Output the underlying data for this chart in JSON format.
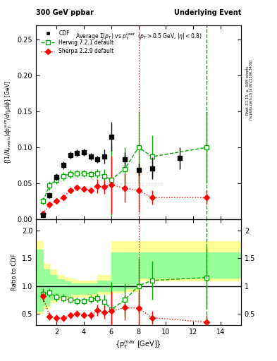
{
  "title_left": "300 GeV ppbar",
  "title_right": "Underlying Event",
  "plot_title": "Average $\\Sigma(p_T)$ vs $p_T^{lead}$  ($p_T > 0.5$ GeV, $|\\eta| < 0.8$)",
  "ylabel_main": "$(1/N_{events}) dp_T^{sum}/d\\eta_t d\\phi$ [GeV]",
  "ylabel_ratio": "Ratio to CDF",
  "xlabel": "$\\{p_T^{max}$ [GeV]$\\}$",
  "right_label_top": "Rivet 3.1.10, $\\geq$ 3.6M events",
  "right_label_bottom": "mcplots.cern.ch [arXiv:1306.3436]",
  "watermark": "CDF 2015_I1388868",
  "cdf_x": [
    1.0,
    1.5,
    2.0,
    2.5,
    3.0,
    3.5,
    4.0,
    4.5,
    5.0,
    5.5,
    6.0,
    7.0,
    8.0,
    9.0,
    11.0
  ],
  "cdf_y": [
    0.006,
    0.033,
    0.059,
    0.075,
    0.089,
    0.092,
    0.093,
    0.087,
    0.083,
    0.087,
    0.115,
    0.083,
    0.069,
    0.071,
    0.085
  ],
  "cdf_yerr": [
    0.002,
    0.004,
    0.005,
    0.005,
    0.005,
    0.005,
    0.005,
    0.005,
    0.005,
    0.01,
    0.02,
    0.01,
    0.008,
    0.015,
    0.015
  ],
  "herwig_x": [
    1.0,
    1.5,
    2.0,
    2.5,
    3.0,
    3.5,
    4.0,
    4.5,
    5.0,
    5.5,
    6.0,
    7.0,
    8.0,
    9.0,
    13.0
  ],
  "herwig_y": [
    0.025,
    0.047,
    0.055,
    0.06,
    0.063,
    0.064,
    0.064,
    0.063,
    0.064,
    0.06,
    0.055,
    0.07,
    0.1,
    0.087,
    0.1
  ],
  "herwig_yerr": [
    0.005,
    0.006,
    0.006,
    0.006,
    0.006,
    0.005,
    0.005,
    0.005,
    0.006,
    0.01,
    0.05,
    0.03,
    0.05,
    0.03,
    0.05
  ],
  "sherpa_x": [
    1.0,
    1.5,
    2.0,
    2.5,
    3.0,
    3.5,
    4.0,
    4.5,
    5.0,
    5.5,
    6.0,
    7.0,
    8.0,
    9.0,
    13.0
  ],
  "sherpa_y": [
    0.008,
    0.02,
    0.025,
    0.03,
    0.04,
    0.044,
    0.042,
    0.04,
    0.046,
    0.045,
    0.048,
    0.043,
    0.04,
    0.03,
    0.03
  ],
  "sherpa_yerr": [
    0.003,
    0.004,
    0.004,
    0.004,
    0.004,
    0.004,
    0.004,
    0.004,
    0.01,
    0.01,
    0.04,
    0.02,
    0.03,
    0.01,
    0.01
  ],
  "herwig_ratio_x": [
    1.0,
    1.5,
    2.0,
    2.5,
    3.0,
    3.5,
    4.0,
    4.5,
    5.0,
    5.5,
    6.0,
    7.0,
    8.0,
    9.0,
    13.0
  ],
  "herwig_ratio_y": [
    0.85,
    0.88,
    0.8,
    0.78,
    0.75,
    0.73,
    0.73,
    0.76,
    0.78,
    0.72,
    0.57,
    0.75,
    1.0,
    1.1,
    1.15
  ],
  "herwig_ratio_yerr": [
    0.1,
    0.08,
    0.07,
    0.07,
    0.06,
    0.06,
    0.06,
    0.07,
    0.08,
    0.12,
    0.5,
    0.3,
    0.5,
    0.35,
    0.55
  ],
  "sherpa_ratio_x": [
    1.0,
    1.5,
    2.0,
    2.5,
    3.0,
    3.5,
    4.0,
    4.5,
    5.0,
    5.5,
    6.0,
    7.0,
    8.0,
    9.0,
    13.0
  ],
  "sherpa_ratio_y": [
    0.82,
    0.45,
    0.42,
    0.42,
    0.47,
    0.5,
    0.48,
    0.47,
    0.56,
    0.53,
    0.55,
    0.61,
    0.6,
    0.43,
    0.35
  ],
  "sherpa_ratio_yerr": [
    0.1,
    0.07,
    0.07,
    0.06,
    0.06,
    0.06,
    0.06,
    0.07,
    0.1,
    0.12,
    0.35,
    0.22,
    0.3,
    0.12,
    0.12
  ],
  "band_yellow_x": [
    0.5,
    1.0,
    1.5,
    2.0,
    2.5,
    3.0,
    3.5,
    4.0,
    4.5,
    5.0,
    5.5,
    6.0,
    7.0,
    8.0,
    9.0,
    11.0,
    15.5
  ],
  "band_yellow_low": [
    0.5,
    0.5,
    0.6,
    0.7,
    0.75,
    0.78,
    0.8,
    0.8,
    0.8,
    0.82,
    0.85,
    0.85,
    0.88,
    0.9,
    1.1,
    1.1,
    1.1
  ],
  "band_yellow_high": [
    1.8,
    1.8,
    1.4,
    1.3,
    1.2,
    1.15,
    1.12,
    1.1,
    1.1,
    1.1,
    1.2,
    1.2,
    1.8,
    1.8,
    1.8,
    1.8,
    1.8
  ],
  "band_green_x": [
    0.5,
    1.0,
    1.5,
    2.0,
    2.5,
    3.0,
    3.5,
    4.0,
    4.5,
    5.0,
    5.5,
    6.0,
    7.0,
    8.0,
    9.0,
    11.0,
    15.5
  ],
  "band_green_low": [
    0.55,
    0.55,
    0.65,
    0.75,
    0.8,
    0.82,
    0.85,
    0.85,
    0.85,
    0.87,
    0.9,
    0.9,
    0.92,
    0.95,
    1.15,
    1.15,
    1.15
  ],
  "band_green_high": [
    1.65,
    1.65,
    1.3,
    1.2,
    1.12,
    1.08,
    1.05,
    1.04,
    1.04,
    1.04,
    1.1,
    1.1,
    1.6,
    1.6,
    1.6,
    1.6,
    1.6
  ],
  "ylim_main": [
    0.0,
    0.27
  ],
  "ylim_ratio": [
    0.3,
    2.2
  ],
  "xlim": [
    0.5,
    15.5
  ],
  "herwig_vline_x": 13.0,
  "sherpa_vline_x": 8.0,
  "cdf_color": "black",
  "herwig_color": "#00aa00",
  "sherpa_color": "red",
  "band_yellow_color": "#ffff99",
  "band_green_color": "#99ff99"
}
